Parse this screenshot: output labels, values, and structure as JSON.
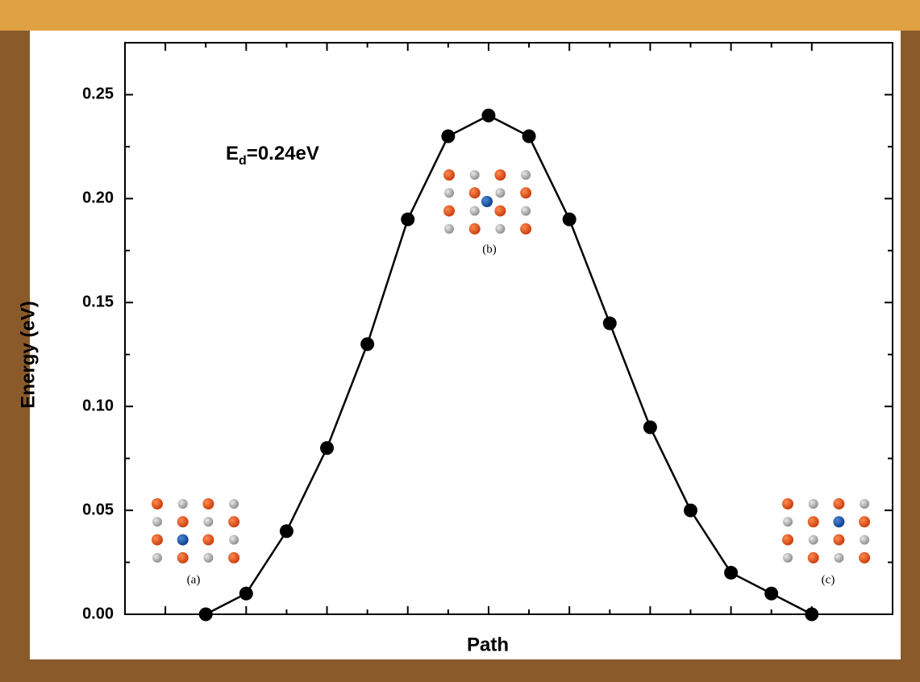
{
  "chart_data": {
    "type": "line",
    "xlabel": "Path",
    "ylabel": "Energy (eV)",
    "annotation": [
      "E",
      "d",
      "=0.24eV"
    ],
    "inset_labels": [
      "(a)",
      "(b)",
      "(c)"
    ],
    "x": [
      1,
      2,
      3,
      4,
      5,
      6,
      7,
      8,
      9,
      10,
      11,
      12,
      13,
      14,
      15,
      16
    ],
    "series": [
      {
        "color": "#000000",
        "values": [
          0,
          0.01,
          0.04,
          0.08,
          0.13,
          0.19,
          0.23,
          0.24,
          0.23,
          0.19,
          0.14,
          0.09,
          0.05,
          0.02,
          0.01,
          0
        ]
      }
    ],
    "xlim": [
      -1,
      18
    ],
    "xticks": [
      0,
      2,
      4,
      6,
      8,
      10,
      12,
      14,
      16
    ],
    "ylim": [
      0,
      0.275
    ],
    "yticks": [
      {
        "value": 0,
        "label": "0.00"
      },
      {
        "value": 0.05,
        "label": "0.05"
      },
      {
        "value": 0.1,
        "label": "0.10"
      },
      {
        "value": 0.15,
        "label": "0.15"
      },
      {
        "value": 0.2,
        "label": "0.20"
      },
      {
        "value": 0.25,
        "label": "0.25"
      }
    ]
  }
}
